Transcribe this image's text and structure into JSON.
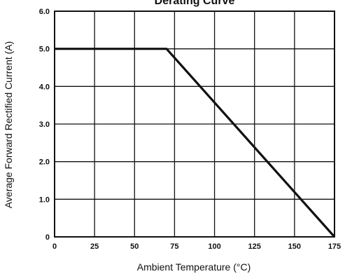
{
  "chart_data": {
    "type": "line",
    "title": "Derating Curve",
    "xlabel": "Ambient Temperature (°C)",
    "ylabel": "Average Forward Rectified Current (A)",
    "xlim": [
      0,
      175
    ],
    "ylim": [
      0,
      6.0
    ],
    "x_ticks": [
      0,
      25,
      50,
      75,
      100,
      125,
      150,
      175
    ],
    "x_tick_labels": [
      "0",
      "25",
      "50",
      "75",
      "100",
      "125",
      "150",
      "175"
    ],
    "y_ticks": [
      0,
      1,
      2,
      3,
      4,
      5,
      6
    ],
    "y_tick_labels": [
      "0",
      "1.0",
      "2.0",
      "3.0",
      "4.0",
      "5.0",
      "6.0"
    ],
    "grid": true,
    "series": [
      {
        "x": [
          0,
          70,
          175
        ],
        "y": [
          5.0,
          5.0,
          0.0
        ]
      }
    ],
    "colors": {
      "line": "#111111",
      "grid": "#111111",
      "frame": "#111111",
      "background": "#ffffff"
    }
  }
}
